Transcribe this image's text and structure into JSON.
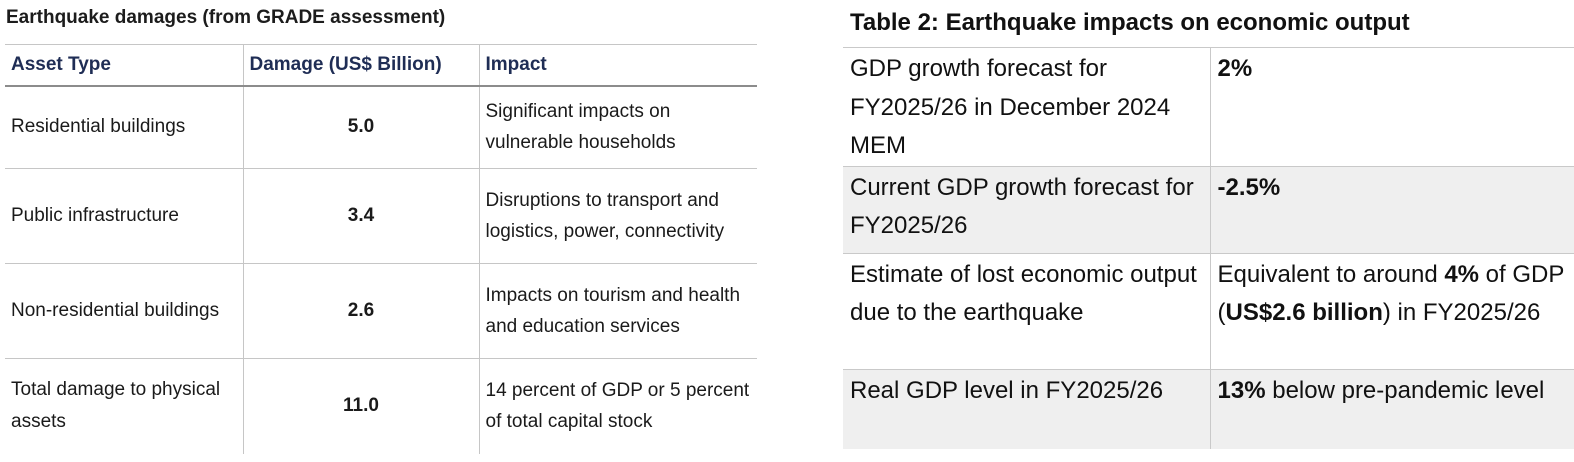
{
  "left_table": {
    "title": "Earthquake damages (from GRADE assessment)",
    "headers": [
      "Asset Type",
      "Damage (US$ Billion)",
      "Impact"
    ],
    "rows": [
      {
        "asset": "Residential buildings",
        "damage": "5.0",
        "impact": "Significant impacts on vulnerable households"
      },
      {
        "asset": "Public infrastructure",
        "damage": "3.4",
        "impact": "Disruptions to transport and logistics, power, connectivity"
      },
      {
        "asset": "Non-residential buildings",
        "damage": "2.6",
        "impact": "Impacts on tourism and health and education services"
      },
      {
        "asset": "Total damage to physical assets",
        "damage": "11.0",
        "impact": "14 percent of GDP or 5 percent of total capital stock"
      }
    ]
  },
  "right_table": {
    "title": "Table 2: Earthquake impacts on economic output",
    "rows": [
      {
        "label": "GDP growth forecast for FY2025/26 in December 2024 MEM",
        "value_bold": "2%"
      },
      {
        "label": "Current GDP growth forecast for FY2025/26",
        "value_bold": "-2.5%"
      },
      {
        "label": "Estimate of lost economic output due to the earthquake",
        "value_pre": "Equivalent to around ",
        "value_bold1": "4%",
        "value_mid1": " of GDP (",
        "value_bold2": "US$2.6 billion",
        "value_post": ") in FY2025/26"
      },
      {
        "label": "Real GDP level in FY2025/26",
        "value_bold": "13%",
        "value_post": " below pre-pandemic level"
      }
    ]
  }
}
